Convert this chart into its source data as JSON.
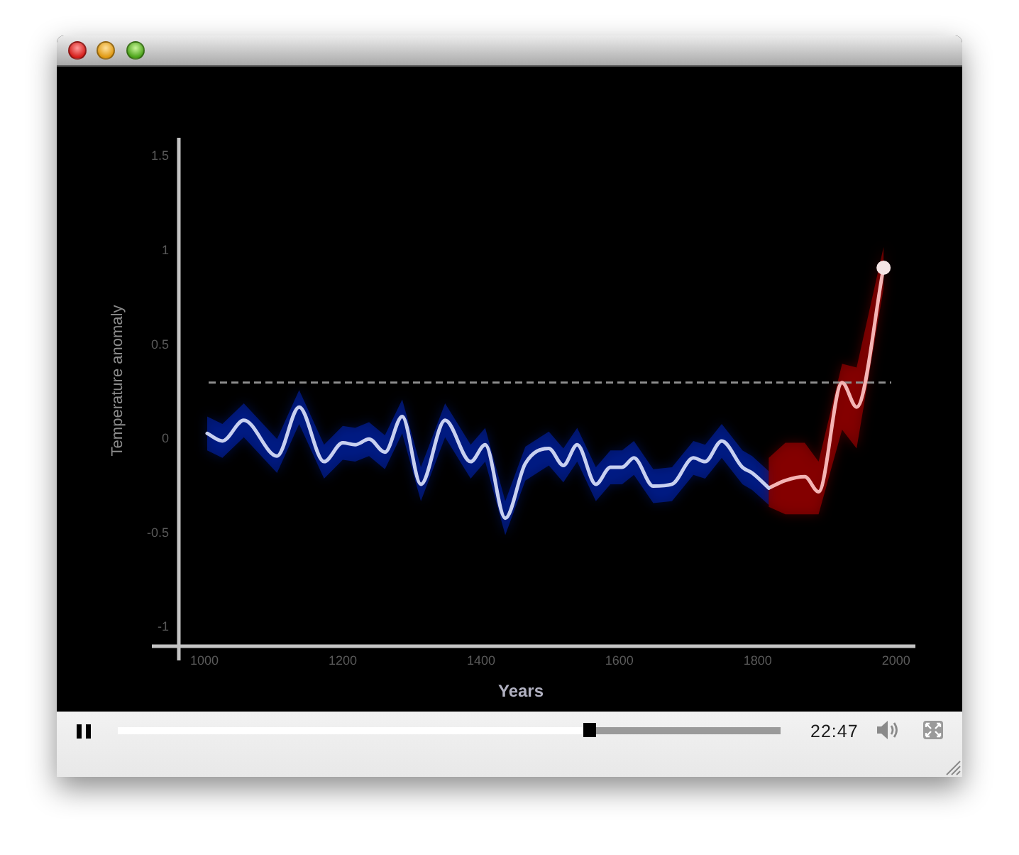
{
  "chart_data": {
    "type": "line",
    "xlabel": "Years",
    "ylabel": "Temperature anomaly",
    "annotations": [
      "22:47"
    ],
    "xlim": [
      963,
      2028
    ],
    "ylim": [
      -1.1,
      1.6
    ],
    "xticks": [
      1000,
      1200,
      1400,
      1600,
      1800,
      2000
    ],
    "yticks": [
      -1,
      -0.5,
      0,
      0.5,
      1,
      1.5
    ],
    "grid": false,
    "legend": false,
    "line_style": "solid",
    "ref_lines": [
      {
        "axis": "y",
        "value": 0.3,
        "color": "#8c8c8c",
        "line_style": "dashed"
      }
    ],
    "series": [
      {
        "color": "#c8d0f0",
        "x": [
          1004,
          1026,
          1057,
          1105,
          1137,
          1173,
          1200,
          1218,
          1238,
          1261,
          1286,
          1313,
          1348,
          1385,
          1406,
          1435,
          1464,
          1498,
          1519,
          1539,
          1566,
          1587,
          1604,
          1621,
          1649,
          1676,
          1707,
          1724,
          1748,
          1778,
          1792,
          1816
        ],
        "values": [
          0.03,
          -0.01,
          0.1,
          -0.09,
          0.17,
          -0.12,
          -0.02,
          -0.03,
          0.0,
          -0.07,
          0.12,
          -0.24,
          0.1,
          -0.12,
          -0.03,
          -0.42,
          -0.13,
          -0.05,
          -0.14,
          -0.03,
          -0.24,
          -0.15,
          -0.15,
          -0.1,
          -0.25,
          -0.24,
          -0.1,
          -0.12,
          -0.01,
          -0.15,
          -0.18,
          -0.26
        ],
        "lower": [
          -0.06,
          -0.1,
          0.01,
          -0.18,
          0.08,
          -0.21,
          -0.11,
          -0.12,
          -0.09,
          -0.16,
          0.03,
          -0.33,
          0.01,
          -0.21,
          -0.12,
          -0.51,
          -0.22,
          -0.14,
          -0.23,
          -0.12,
          -0.33,
          -0.24,
          -0.24,
          -0.19,
          -0.34,
          -0.33,
          -0.19,
          -0.21,
          -0.1,
          -0.24,
          -0.27,
          -0.35
        ],
        "upper": [
          0.12,
          0.08,
          0.19,
          0.0,
          0.26,
          -0.03,
          0.07,
          0.06,
          0.09,
          0.02,
          0.21,
          -0.15,
          0.19,
          -0.03,
          0.06,
          -0.33,
          -0.04,
          0.04,
          -0.05,
          0.06,
          -0.15,
          -0.06,
          -0.06,
          -0.01,
          -0.16,
          -0.15,
          -0.01,
          -0.03,
          0.08,
          -0.06,
          -0.09,
          -0.17
        ]
      },
      {
        "color": "#f4b4b4",
        "x": [
          1816,
          1840,
          1868,
          1888,
          1922,
          1943,
          1982
        ],
        "values": [
          -0.26,
          -0.22,
          -0.2,
          -0.28,
          0.3,
          0.17,
          0.91
        ],
        "lower": [
          -0.36,
          -0.4,
          -0.4,
          -0.4,
          0.05,
          -0.05,
          0.8
        ],
        "upper": [
          -0.1,
          -0.02,
          -0.02,
          -0.12,
          0.4,
          0.38,
          1.02
        ]
      },
      {
        "type": "scatter",
        "color": "#f4e4e4",
        "marker": "circle",
        "x": [
          1982
        ],
        "values": [
          0.91
        ]
      }
    ]
  }
}
